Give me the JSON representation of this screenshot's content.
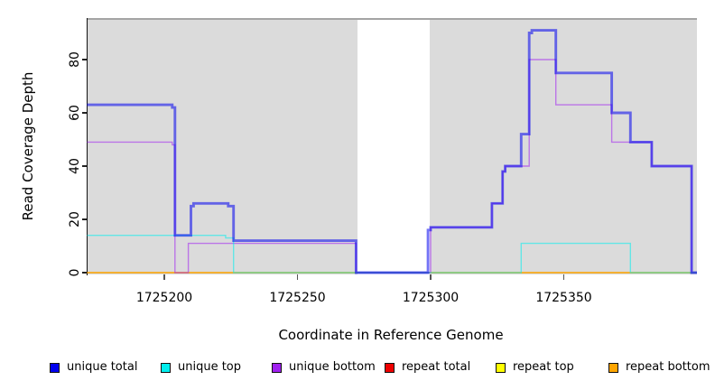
{
  "chart_data": {
    "type": "line",
    "title": "",
    "xlabel": "Coordinate in Reference Genome",
    "ylabel": "Read Coverage Depth",
    "x_axis": {
      "ticks": [
        1725200,
        1725250,
        1725300,
        1725350
      ],
      "tick_labels": [
        "1725200",
        "1725250",
        "1725300",
        "1725350"
      ],
      "range": [
        1725171,
        1725400
      ]
    },
    "y_axis": {
      "ticks": [
        0,
        20,
        40,
        60,
        80
      ],
      "tick_labels": [
        "0",
        "20",
        "40",
        "60",
        "80"
      ],
      "range": [
        0,
        95
      ]
    },
    "panel_background": "#DBDBDB",
    "grid": "off",
    "legend_position": "bottom",
    "gap_region": {
      "x_start": 1725272.5,
      "x_end": 1725299.8,
      "color": "#FFFFFF"
    },
    "line_alpha": 0.55,
    "step_series": [
      {
        "name": "repeat total",
        "color": "#EE0000",
        "width": 1.4,
        "steps": [
          [
            1725171,
            0
          ],
          [
            1725400,
            0
          ]
        ]
      },
      {
        "name": "repeat top",
        "color": "#FFFF00",
        "width": 1.4,
        "steps": [
          [
            1725171,
            0
          ],
          [
            1725400,
            0
          ]
        ]
      },
      {
        "name": "repeat bottom",
        "color": "#FFA500",
        "width": 1.4,
        "steps": [
          [
            1725171,
            0
          ],
          [
            1725400,
            0
          ]
        ]
      },
      {
        "name": "unique bottom",
        "color": "#A020F0",
        "width": 1.4,
        "steps": [
          [
            1725171,
            49
          ],
          [
            1725203,
            48
          ],
          [
            1725204,
            0
          ],
          [
            1725209,
            11
          ],
          [
            1725272,
            0
          ],
          [
            1725300,
            17
          ],
          [
            1725323,
            26
          ],
          [
            1725327,
            38
          ],
          [
            1725328,
            40
          ],
          [
            1725337,
            80
          ],
          [
            1725347,
            63
          ],
          [
            1725368,
            49
          ],
          [
            1725383,
            40
          ],
          [
            1725398,
            0
          ],
          [
            1725400,
            0
          ]
        ]
      },
      {
        "name": "unique top",
        "color": "#00EEEE",
        "width": 1.4,
        "steps": [
          [
            1725171,
            14
          ],
          [
            1725223,
            13
          ],
          [
            1725226,
            0
          ],
          [
            1725334,
            11
          ],
          [
            1725375,
            0
          ],
          [
            1725400,
            0
          ]
        ]
      },
      {
        "name": "unique total",
        "color": "#0000EE",
        "width": 2.9,
        "steps": [
          [
            1725171,
            63
          ],
          [
            1725203,
            62
          ],
          [
            1725204,
            14
          ],
          [
            1725210,
            25
          ],
          [
            1725211,
            26
          ],
          [
            1725224,
            25
          ],
          [
            1725226,
            12
          ],
          [
            1725272,
            0
          ],
          [
            1725299,
            16
          ],
          [
            1725300,
            17
          ],
          [
            1725323,
            26
          ],
          [
            1725327,
            38
          ],
          [
            1725328,
            40
          ],
          [
            1725334,
            52
          ],
          [
            1725337,
            90
          ],
          [
            1725338,
            91
          ],
          [
            1725347,
            75
          ],
          [
            1725368,
            60
          ],
          [
            1725375,
            49
          ],
          [
            1725383,
            40
          ],
          [
            1725398,
            0
          ],
          [
            1725400,
            0
          ]
        ]
      }
    ]
  },
  "legend": {
    "items": [
      {
        "label": "unique total",
        "color": "#0000EE"
      },
      {
        "label": "unique top",
        "color": "#00EEEE"
      },
      {
        "label": "unique bottom",
        "color": "#A020F0"
      },
      {
        "label": "repeat total",
        "color": "#EE0000"
      },
      {
        "label": "repeat top",
        "color": "#FFFF00"
      },
      {
        "label": "repeat bottom",
        "color": "#FFA500"
      }
    ]
  }
}
